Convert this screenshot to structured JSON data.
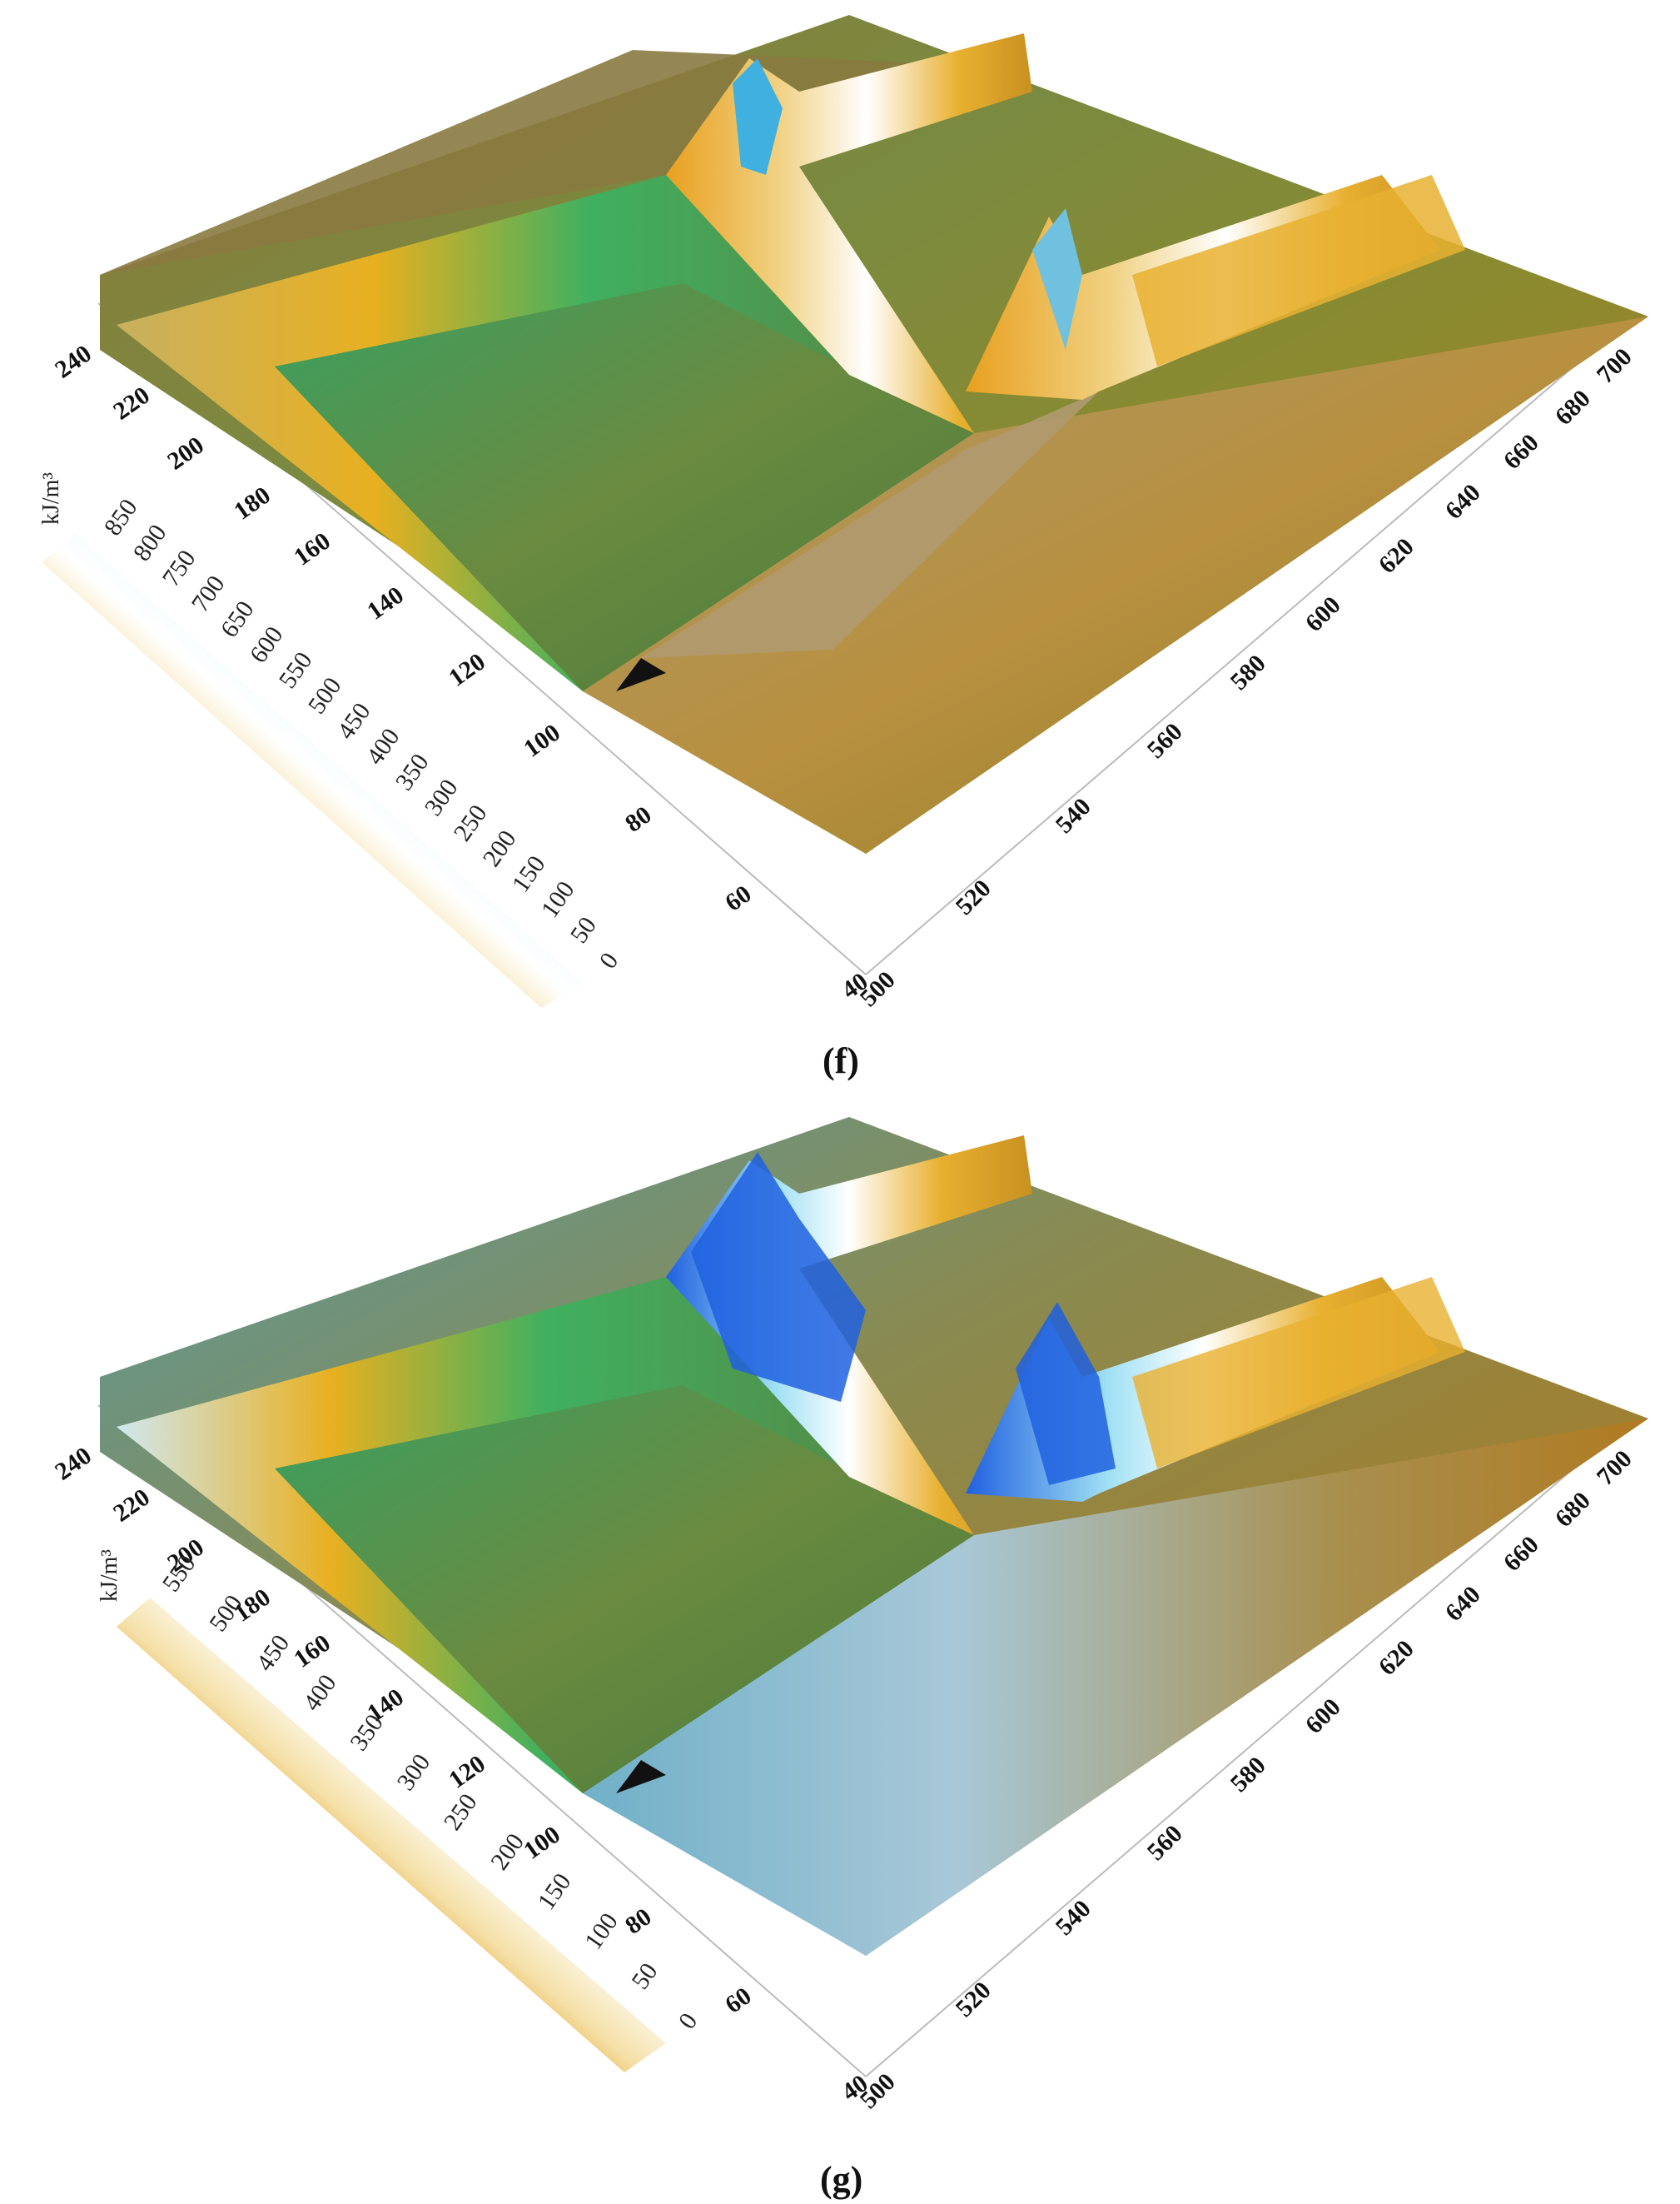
{
  "chart_data": [
    {
      "type": "surface3d",
      "panel_label": "(f)",
      "x_ticks": [
        "500",
        "520",
        "540",
        "560",
        "580",
        "600",
        "620",
        "640",
        "660",
        "680",
        "700"
      ],
      "y_ticks": [
        "40",
        "60",
        "80",
        "100",
        "120",
        "140",
        "160",
        "180",
        "200",
        "220",
        "240"
      ],
      "colorbar": {
        "unit": "kJ/m³",
        "ticks": [
          "0",
          "50",
          "100",
          "150",
          "200",
          "250",
          "300",
          "350",
          "400",
          "450",
          "500",
          "550",
          "600",
          "650",
          "700",
          "750",
          "800",
          "850"
        ],
        "range": [
          0,
          850
        ],
        "colors": [
          "#d8e6a0",
          "#4cc060",
          "#b8dcb8",
          "#f0c020",
          "#e8a020",
          "#f4e0a8",
          "#ffffff",
          "#a8e0f0",
          "#20a8e0",
          "#2060e0"
        ]
      }
    },
    {
      "type": "surface3d",
      "panel_label": "(g)",
      "x_ticks": [
        "500",
        "520",
        "540",
        "560",
        "580",
        "600",
        "620",
        "640",
        "660",
        "680",
        "700"
      ],
      "y_ticks": [
        "40",
        "60",
        "80",
        "100",
        "120",
        "140",
        "160",
        "180",
        "200",
        "220",
        "240"
      ],
      "colorbar": {
        "unit": "kJ/m³",
        "ticks": [
          "0",
          "50",
          "100",
          "150",
          "200",
          "250",
          "300",
          "350",
          "400",
          "450",
          "500",
          "550"
        ],
        "range": [
          0,
          550
        ],
        "colors": [
          "#d8e6a0",
          "#4cc060",
          "#b8dcb8",
          "#f0c020",
          "#e8a020",
          "#f4e0a8",
          "#ffffff",
          "#a8e0f0",
          "#20a8e0",
          "#2060e0"
        ]
      }
    }
  ]
}
